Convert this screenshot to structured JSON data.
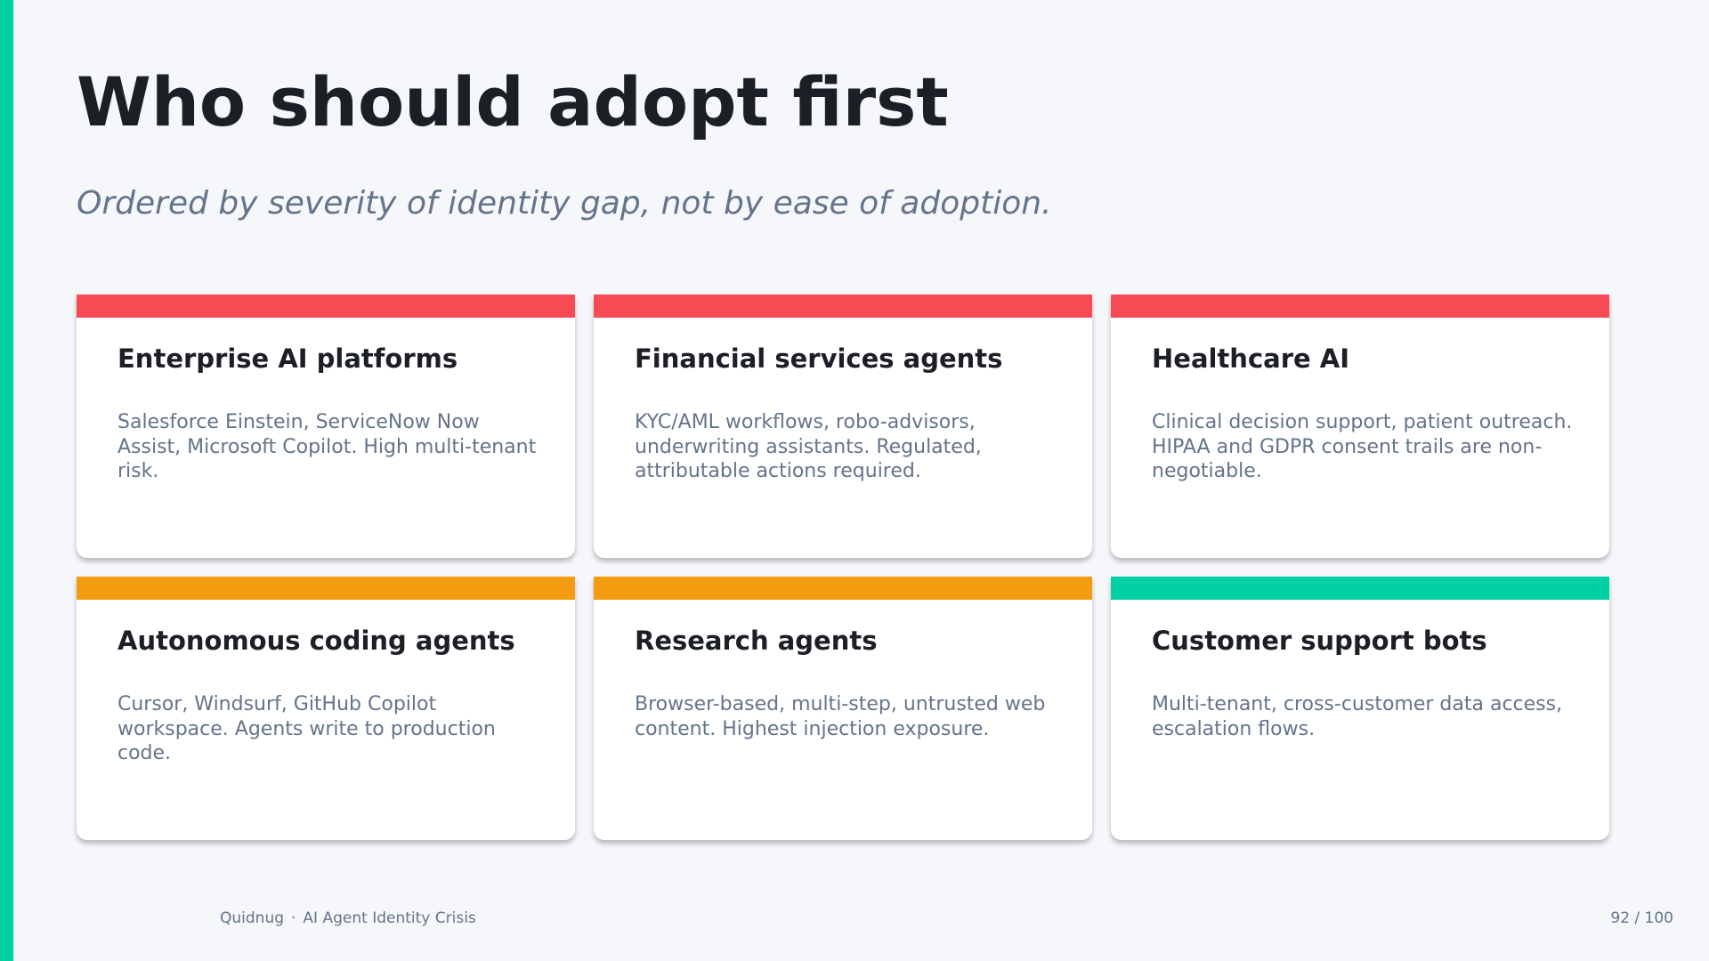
{
  "header": {
    "title": "Who should adopt first",
    "subtitle": "Ordered by severity of identity gap, not by ease of adoption."
  },
  "cards": [
    {
      "title": "Enterprise AI platforms",
      "description": "Salesforce Einstein, ServiceNow Now Assist, Microsoft Copilot. High multi-tenant risk.",
      "color": "#f74a55"
    },
    {
      "title": "Financial services agents",
      "description": "KYC/AML workflows, robo-advisors, underwriting assistants. Regulated, attributable actions required.",
      "color": "#f74a55"
    },
    {
      "title": "Healthcare AI",
      "description": "Clinical decision support, patient outreach. HIPAA and GDPR consent trails are non-negotiable.",
      "color": "#f74a55"
    },
    {
      "title": "Autonomous coding agents",
      "description": "Cursor, Windsurf, GitHub Copilot workspace. Agents write to production code.",
      "color": "#f39c12"
    },
    {
      "title": "Research agents",
      "description": "Browser-based, multi-step, untrusted web content. Highest injection exposure.",
      "color": "#f39c12"
    },
    {
      "title": "Customer support bots",
      "description": "Multi-tenant, cross-customer data access, escalation flows.",
      "color": "#00d1a4"
    }
  ],
  "footer": {
    "brand": "Quidnug",
    "separator": "·",
    "deck": "AI Agent Identity Crisis",
    "page": "92 / 100"
  }
}
